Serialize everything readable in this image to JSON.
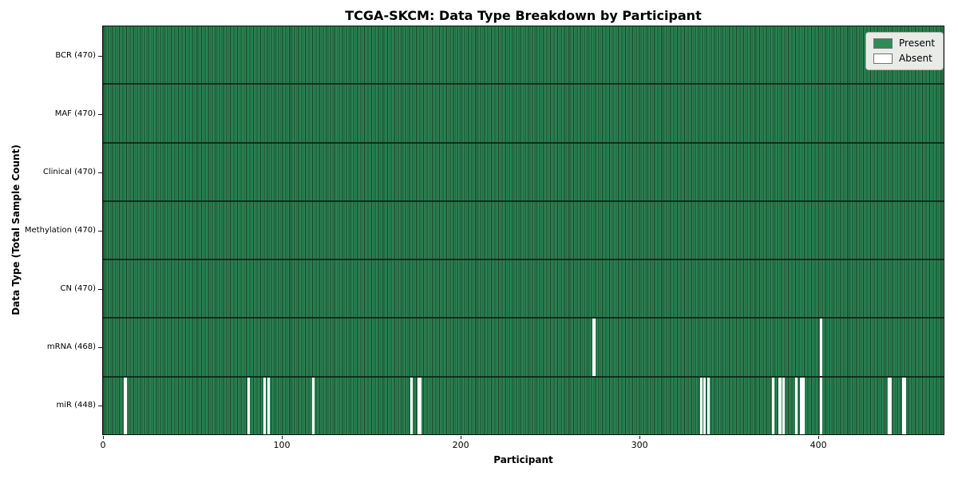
{
  "title": "TCGA-SKCM: Data Type Breakdown by Participant",
  "chart_data": {
    "type": "heatmap",
    "title": "TCGA-SKCM: Data Type Breakdown by Participant",
    "xlabel": "Participant",
    "ylabel": "Data Type (Total Sample Count)",
    "x_range": [
      0,
      470
    ],
    "x_ticks": [
      0,
      100,
      200,
      300,
      400
    ],
    "n_participants": 470,
    "grid": false,
    "legend_position": "upper-right",
    "legend": [
      {
        "label": "Present",
        "color": "#2e8b57"
      },
      {
        "label": "Absent",
        "color": "#ffffff"
      }
    ],
    "colors": {
      "present": "#2e8b57",
      "absent": "#ffffff",
      "bar_edge": "#17402a"
    },
    "rows": [
      {
        "name": "BCR",
        "label": "BCR (470)",
        "present_count": 470,
        "absent_participants": []
      },
      {
        "name": "MAF",
        "label": "MAF (470)",
        "present_count": 470,
        "absent_participants": []
      },
      {
        "name": "Clinical",
        "label": "Clinical (470)",
        "present_count": 470,
        "absent_participants": []
      },
      {
        "name": "Methylation",
        "label": "Methylation (470)",
        "present_count": 470,
        "absent_participants": []
      },
      {
        "name": "CN",
        "label": "CN (470)",
        "present_count": 470,
        "absent_participants": []
      },
      {
        "name": "mRNA",
        "label": "mRNA (468)",
        "present_count": 468,
        "absent_participants": [
          274,
          401
        ]
      },
      {
        "name": "miR",
        "label": "miR (448)",
        "present_count": 448,
        "absent_participants": [
          12,
          81,
          90,
          92,
          117,
          172,
          176,
          177,
          334,
          336,
          338,
          374,
          378,
          380,
          387,
          390,
          391,
          401,
          439,
          440,
          447,
          448
        ]
      }
    ]
  }
}
